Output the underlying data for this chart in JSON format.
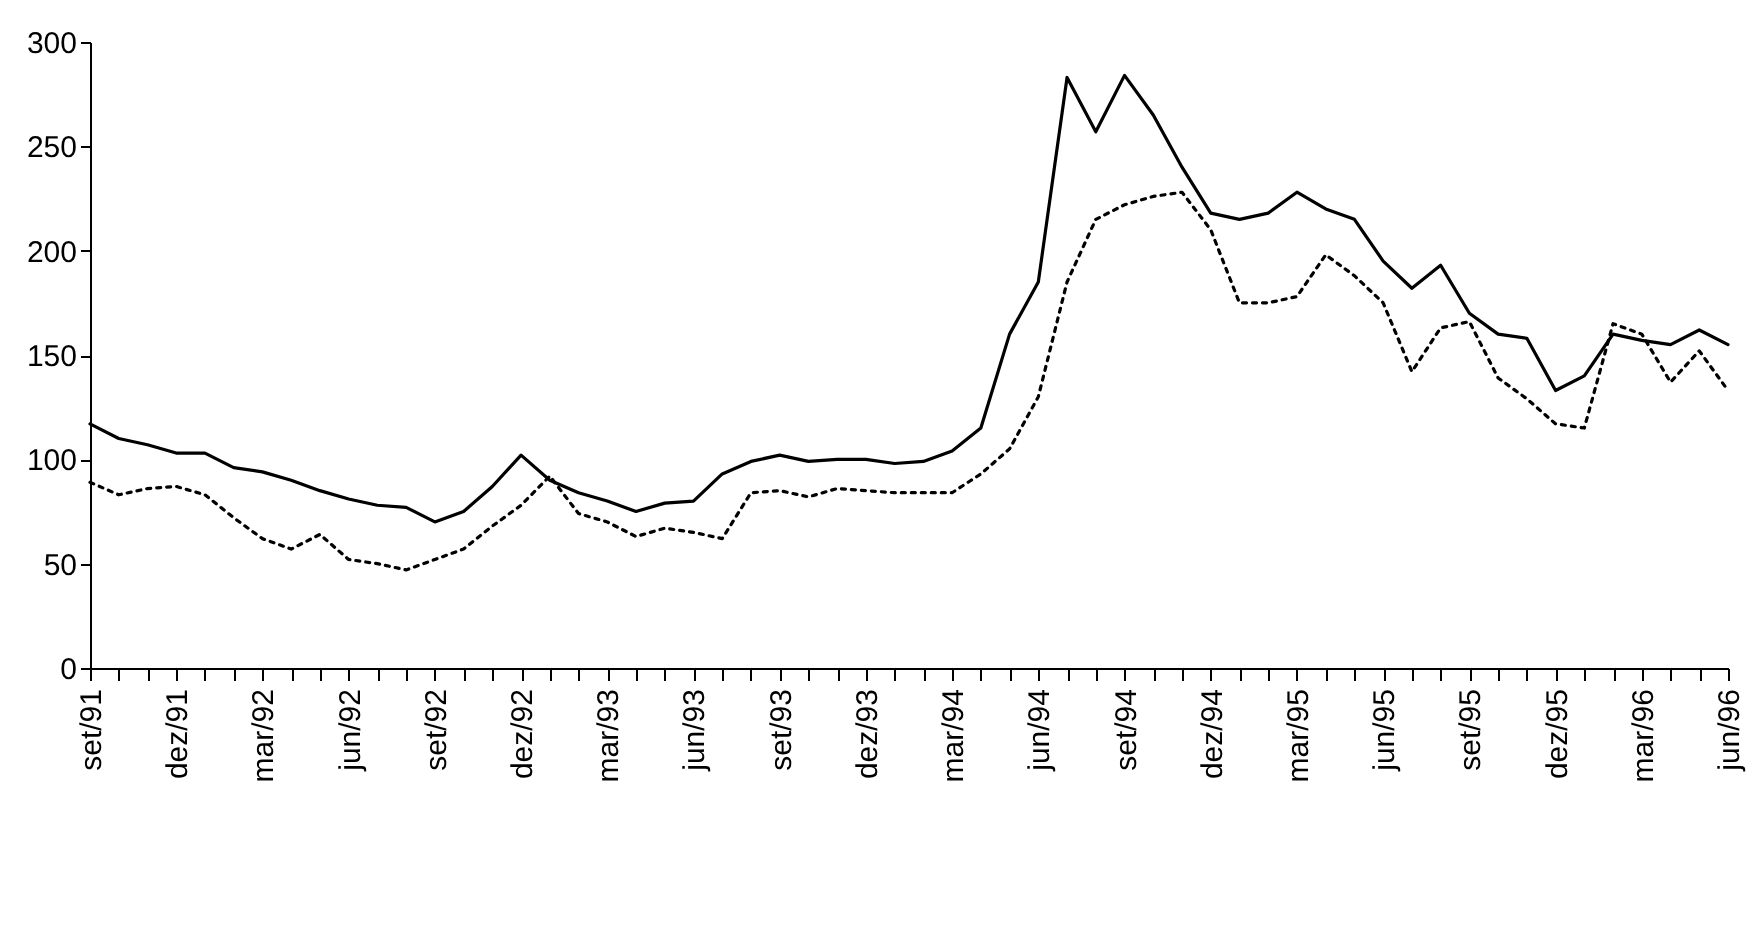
{
  "chart_data": {
    "type": "line",
    "categories": [
      "set/91",
      null,
      null,
      "dez/91",
      null,
      null,
      "mar/92",
      null,
      null,
      "jun/92",
      null,
      null,
      "set/92",
      null,
      null,
      "dez/92",
      null,
      null,
      "mar/93",
      null,
      null,
      "jun/93",
      null,
      null,
      "set/93",
      null,
      null,
      "dez/93",
      null,
      null,
      "mar/94",
      null,
      null,
      "jun/94",
      null,
      null,
      "set/94",
      null,
      null,
      "dez/94",
      null,
      null,
      "mar/95",
      null,
      null,
      "jun/95",
      null,
      null,
      "set/95",
      null,
      null,
      "dez/95",
      null,
      null,
      "mar/96",
      null,
      null,
      "jun/96"
    ],
    "series": [
      {
        "color": "#000000",
        "line_style": "dotted",
        "values": [
          89,
          83,
          86,
          87,
          83,
          72,
          62,
          57,
          64,
          52,
          50,
          47,
          52,
          57,
          68,
          78,
          92,
          74,
          70,
          63,
          67,
          65,
          62,
          84,
          85,
          82,
          86,
          85,
          84,
          84,
          84,
          93,
          105,
          130,
          185,
          215,
          222,
          226,
          228,
          210,
          175,
          175,
          178,
          198,
          188,
          175,
          142,
          163,
          166,
          139,
          129,
          117,
          115,
          165,
          160,
          137,
          152,
          133
        ]
      },
      {
        "color": "#000000",
        "line_style": "solid",
        "values": [
          117,
          110,
          107,
          103,
          103,
          96,
          94,
          90,
          85,
          81,
          78,
          77,
          70,
          75,
          87,
          102,
          90,
          84,
          80,
          75,
          79,
          80,
          93,
          99,
          102,
          99,
          100,
          100,
          98,
          99,
          104,
          115,
          160,
          185,
          283,
          257,
          284,
          265,
          240,
          218,
          215,
          218,
          228,
          220,
          215,
          195,
          182,
          193,
          170,
          160,
          158,
          133,
          140,
          160,
          157,
          155,
          162,
          155
        ]
      }
    ],
    "ylim": [
      0,
      300
    ],
    "yticks": [
      0,
      50,
      100,
      150,
      200,
      250,
      300
    ],
    "grid": false
  }
}
